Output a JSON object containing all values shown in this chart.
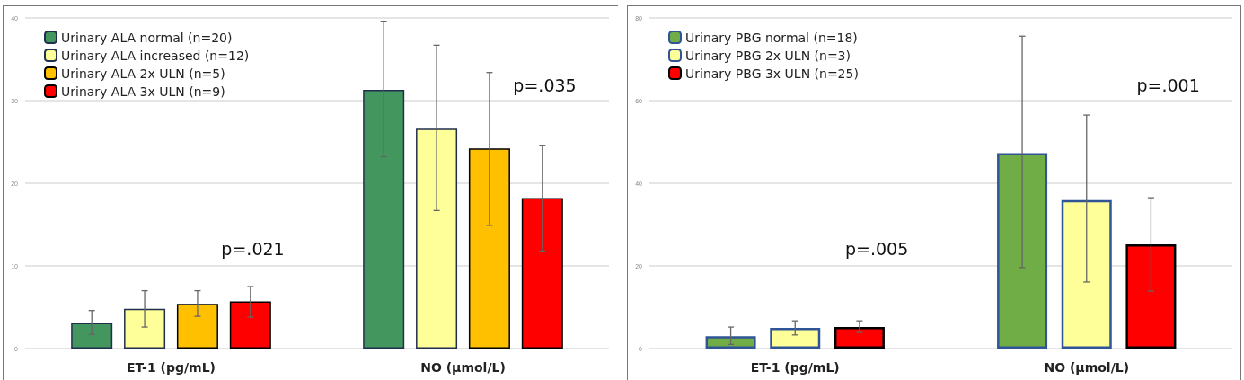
{
  "chart_data": [
    {
      "type": "bar",
      "categories": [
        "ET-1 (pg/mL)",
        "NO (µmol/L)"
      ],
      "ylim": [
        0,
        40
      ],
      "yticks": [
        0,
        10,
        20,
        30,
        40
      ],
      "grid": "y",
      "legend": "top left",
      "series": [
        {
          "name": "Urinary ALA normal (n=20)",
          "color": "#43965e",
          "values": [
            3.1,
            31.3
          ],
          "errors": [
            [
              1.7,
              4.6
            ],
            [
              23.2,
              39.6
            ]
          ]
        },
        {
          "name": "Urinary ALA increased (n=12)",
          "color": "#ffff99",
          "values": [
            4.8,
            26.6
          ],
          "errors": [
            [
              2.6,
              7.0
            ],
            [
              16.7,
              36.7
            ]
          ]
        },
        {
          "name": "Urinary ALA 2x ULN (n=5)",
          "color": "#ffc000",
          "values": [
            5.4,
            24.2
          ],
          "errors": [
            [
              3.9,
              7.0
            ],
            [
              14.9,
              33.4
            ]
          ]
        },
        {
          "name": "Urinary ALA 3x ULN (n=9)",
          "color": "#ff0000",
          "values": [
            5.7,
            18.2
          ],
          "errors": [
            [
              3.8,
              7.5
            ],
            [
              11.8,
              24.6
            ]
          ]
        }
      ],
      "annotations": [
        "p=.021",
        "p=.035"
      ]
    },
    {
      "type": "bar",
      "categories": [
        "ET-1 (pg/mL)",
        "NO (µmol/L)"
      ],
      "ylim": [
        0,
        80
      ],
      "yticks": [
        0,
        20,
        40,
        60,
        80
      ],
      "grid": "y",
      "legend": "top left",
      "series": [
        {
          "name": "Urinary PBG normal (n=18)",
          "color": "#70ad47",
          "values": [
            3.0,
            47.3
          ],
          "errors": [
            [
              1.0,
              5.2
            ],
            [
              19.6,
              75.6
            ]
          ]
        },
        {
          "name": "Urinary PBG 2x ULN (n=3)",
          "color": "#ffff99",
          "values": [
            5.0,
            35.9
          ],
          "errors": [
            [
              3.3,
              6.7
            ],
            [
              16.1,
              56.5
            ]
          ]
        },
        {
          "name": "Urinary PBG 3x ULN (n=25)",
          "color": "#ff0000",
          "values": [
            5.2,
            25.2
          ],
          "errors": [
            [
              3.9,
              6.7
            ],
            [
              13.9,
              36.5
            ]
          ]
        }
      ],
      "annotations": [
        "p=.005",
        "p=.001"
      ]
    }
  ]
}
